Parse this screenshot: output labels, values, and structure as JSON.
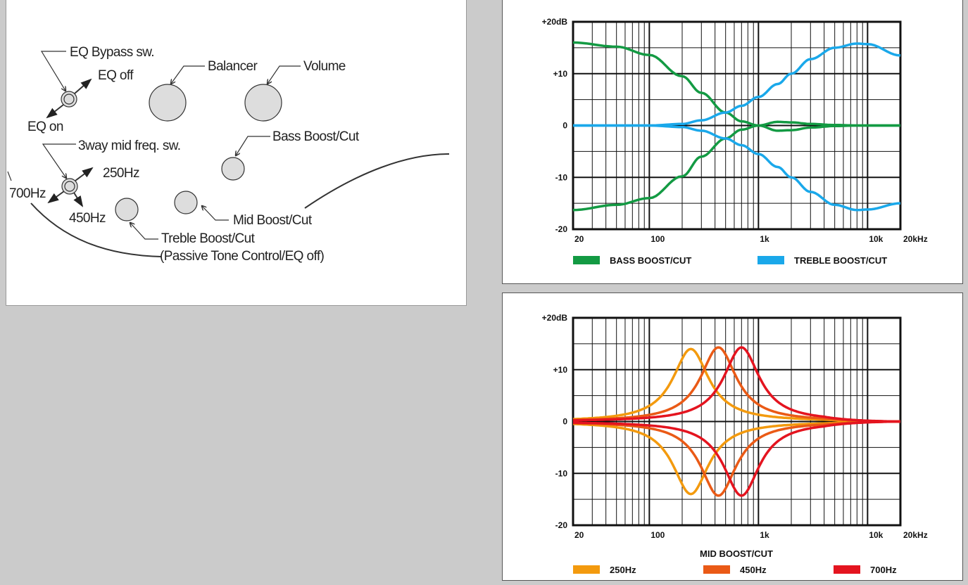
{
  "diagram": {
    "labels": {
      "eq_bypass": "EQ Bypass sw.",
      "eq_off": "EQ off",
      "eq_on": "EQ on",
      "balancer": "Balancer",
      "volume": "Volume",
      "bass": "Bass Boost/Cut",
      "mid_sw": "3way mid freq. sw.",
      "f250": "250Hz",
      "f700": "700Hz",
      "f450": "450Hz",
      "treble": "Treble Boost/Cut",
      "passive": "(Passive Tone Control/EQ off)",
      "mid": "Mid Boost/Cut"
    }
  },
  "chart_data": [
    {
      "type": "line",
      "title": "",
      "xscale": "log",
      "xlim": [
        20,
        20000
      ],
      "ylim": [
        -20,
        20
      ],
      "ytick_labels": [
        "+20dB",
        "+10",
        "0",
        "-10",
        "-20"
      ],
      "yticks": [
        20,
        10,
        0,
        -10,
        -20
      ],
      "xtick_labels": [
        "20",
        "100",
        "1k",
        "10k",
        "20kHz"
      ],
      "xticks": [
        20,
        100,
        1000,
        10000,
        20000
      ],
      "grid": true,
      "legend": "bottom",
      "x": [
        20,
        50,
        100,
        200,
        300,
        500,
        700,
        1000,
        1500,
        2000,
        3000,
        5000,
        8000,
        10000,
        20000
      ],
      "series": [
        {
          "name": "BASS BOOST/CUT",
          "color": "#139a43",
          "legend": true,
          "values": [
            16,
            15.2,
            13.6,
            9.5,
            6.3,
            2.5,
            0.8,
            0,
            0.7,
            0.6,
            0.3,
            0.1,
            0,
            0,
            0
          ]
        },
        {
          "name": "BASS BOOST/CUT",
          "color": "#139a43",
          "legend": false,
          "values": [
            -16.3,
            -15.3,
            -14,
            -9.8,
            -6,
            -2.5,
            -0.8,
            0,
            -1,
            -0.9,
            -0.4,
            -0.1,
            0,
            0,
            0
          ]
        },
        {
          "name": "TREBLE BOOST/CUT",
          "color": "#1aa8ea",
          "legend": true,
          "values": [
            0,
            0,
            0,
            0.3,
            1,
            2.5,
            3.8,
            5.5,
            8,
            10,
            12.8,
            15,
            15.8,
            15.7,
            13.5
          ]
        },
        {
          "name": "TREBLE BOOST/CUT",
          "color": "#1aa8ea",
          "legend": false,
          "values": [
            0,
            0,
            0,
            -0.3,
            -1,
            -2.5,
            -3.8,
            -5.5,
            -8,
            -10,
            -12.8,
            -15.3,
            -16.3,
            -16.2,
            -15
          ]
        }
      ]
    },
    {
      "type": "line",
      "title": "MID BOOST/CUT",
      "xscale": "log",
      "xlim": [
        20,
        20000
      ],
      "ylim": [
        -20,
        20
      ],
      "ytick_labels": [
        "+20dB",
        "+10",
        "0",
        "-10",
        "-20"
      ],
      "yticks": [
        20,
        10,
        0,
        -10,
        -20
      ],
      "xtick_labels": [
        "20",
        "100",
        "1k",
        "10k",
        "20kHz"
      ],
      "xticks": [
        20,
        100,
        1000,
        10000,
        20000
      ],
      "grid": true,
      "legend": "bottom",
      "bands": [
        {
          "name": "250Hz",
          "color": "#f39a0e",
          "center_hz": 240,
          "gain_db": 14,
          "half_width_decades": 0.2
        },
        {
          "name": "450Hz",
          "color": "#ea5a16",
          "center_hz": 430,
          "gain_db": 14.3,
          "half_width_decades": 0.2
        },
        {
          "name": "700Hz",
          "color": "#e4141f",
          "center_hz": 700,
          "gain_db": 14.3,
          "half_width_decades": 0.2
        }
      ]
    }
  ]
}
